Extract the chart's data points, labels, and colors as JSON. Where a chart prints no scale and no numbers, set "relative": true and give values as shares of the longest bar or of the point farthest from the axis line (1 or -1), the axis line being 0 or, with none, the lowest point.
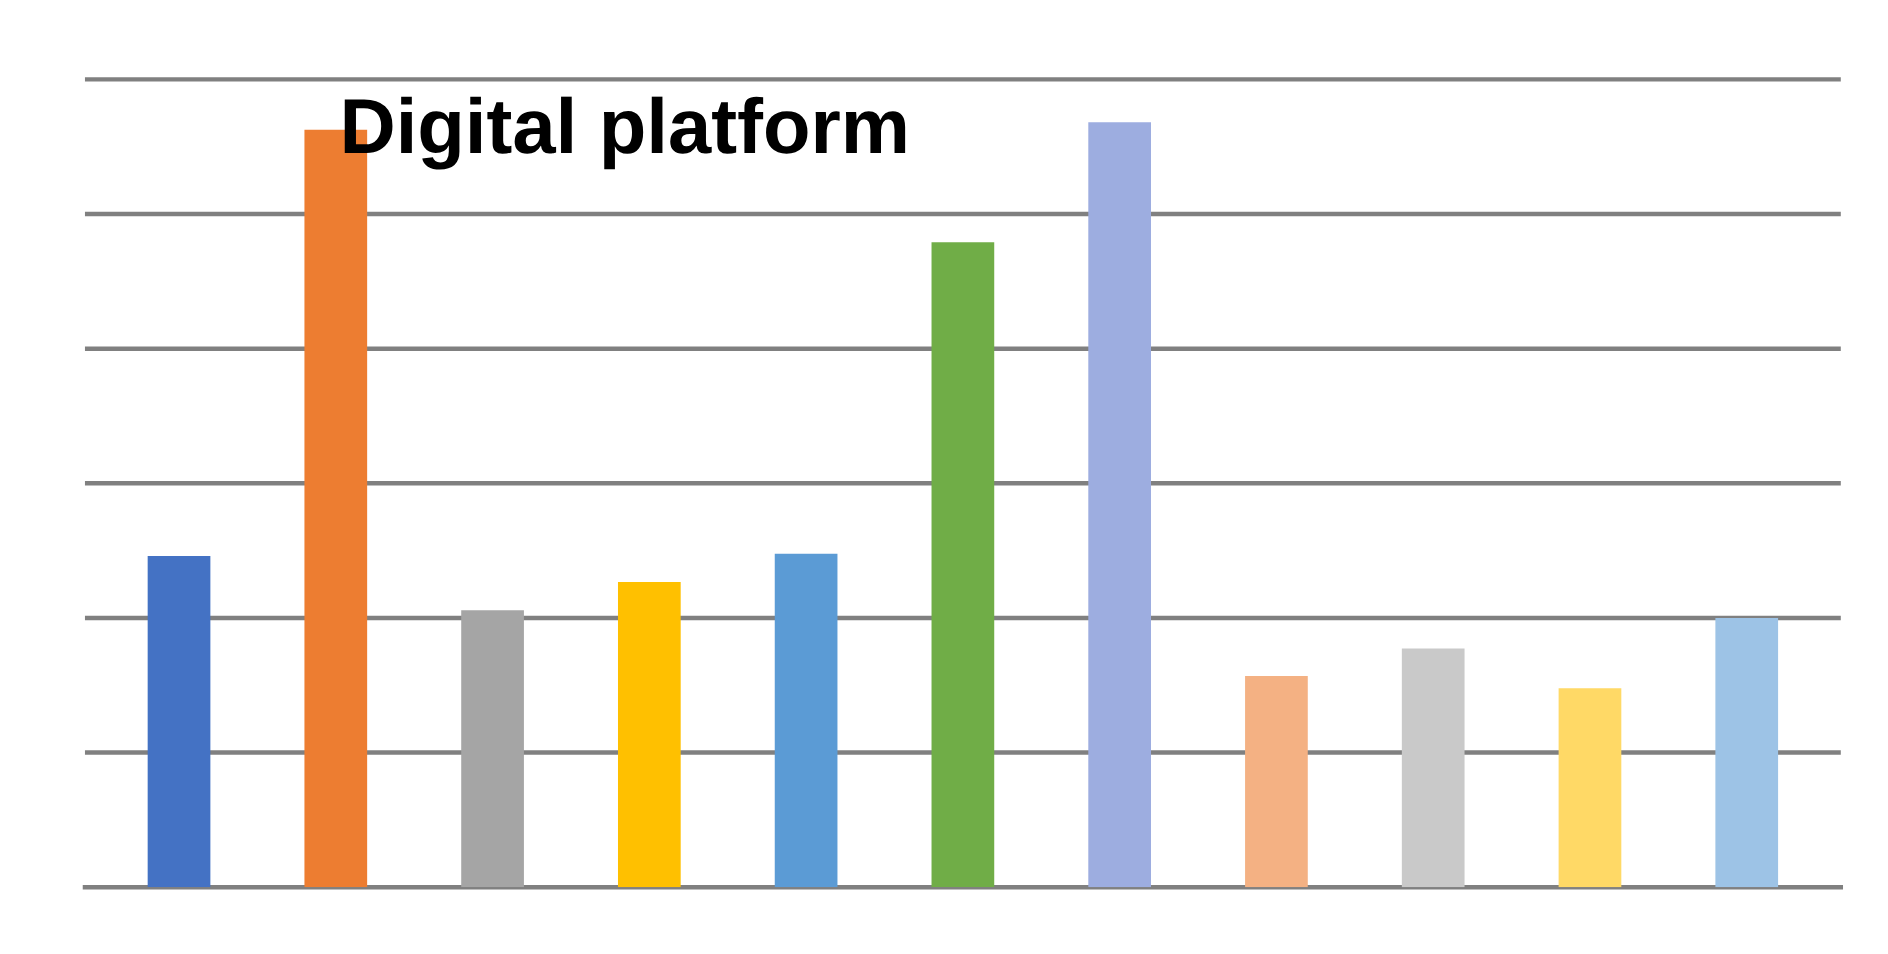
{
  "chart_data": {
    "type": "bar",
    "title": "Digital platform",
    "relative": true,
    "grid": "y",
    "categories": [
      null,
      null,
      null,
      null,
      null,
      null,
      null,
      null,
      null,
      null,
      null
    ],
    "values": [
      0.433,
      0.99,
      0.362,
      0.399,
      0.436,
      0.843,
      1,
      0.276,
      0.312,
      0.26,
      0.352
    ],
    "colors": [
      "#4472c4",
      "#ed7d31",
      "#a5a5a5",
      "#ffc000",
      "#5b9bd5",
      "#70ad47",
      "#9dade0",
      "#f4b183",
      "#c9c9c9",
      "#ffd966",
      "#9dc3e6"
    ]
  }
}
